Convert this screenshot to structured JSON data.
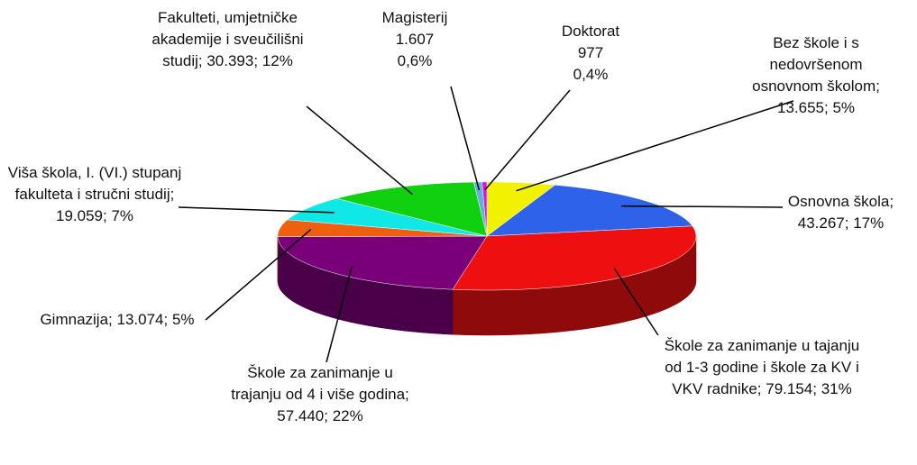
{
  "chart_data": {
    "type": "pie",
    "categories": [
      "Bez škole i s nedovršenom osnovnom školom",
      "Osnovna škola",
      "Škole za zanimanje u tajanju od 1-3 godine i škole za KV i VKV radnike",
      "Škole za zanimanje u trajanju od 4 i više godina",
      "Gimnazija",
      "Viša škola, I. (VI.) stupanj fakulteta i stručni studij",
      "Fakulteti, umjetničke akademije i sveučilišni studij",
      "Magisterij",
      "Doktorat"
    ],
    "values": [
      13655,
      43267,
      79154,
      57440,
      13074,
      19059,
      30393,
      1607,
      977
    ],
    "value_labels": [
      "13.655",
      "43.267",
      "79.154",
      "57.440",
      "13.074",
      "19.059",
      "30.393",
      "1.607",
      "977"
    ],
    "percents": [
      5,
      17,
      31,
      22,
      5,
      7,
      12,
      0.6,
      0.4
    ],
    "percent_labels": [
      "5%",
      "17%",
      "31%",
      "22%",
      "5%",
      "7%",
      "12%",
      "0,6%",
      "0,4%"
    ],
    "colors": [
      "#f2f200",
      "#2e62e8",
      "#ee1010",
      "#7a007a",
      "#ee6010",
      "#10e8e8",
      "#10d010",
      "#60b0d8",
      "#e010e0"
    ]
  }
}
